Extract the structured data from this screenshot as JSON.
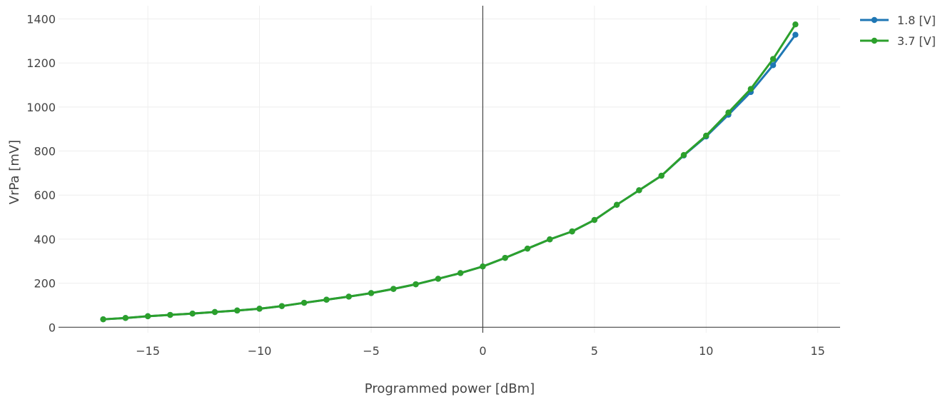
{
  "chart_data": {
    "type": "line",
    "title": "",
    "xlabel": "Programmed power [dBm]",
    "ylabel": "VrPa [mV]",
    "xlim": [
      -19,
      16
    ],
    "ylim": [
      -25,
      1460
    ],
    "xticks": [
      -15,
      -10,
      -5,
      0,
      5,
      10,
      15
    ],
    "xtick_labels": [
      "−15",
      "−10",
      "−5",
      "0",
      "5",
      "10",
      "15"
    ],
    "yticks": [
      0,
      200,
      400,
      600,
      800,
      1000,
      1200,
      1400
    ],
    "ytick_labels": [
      "0",
      "200",
      "400",
      "600",
      "800",
      "1000",
      "1200",
      "1400"
    ],
    "grid": true,
    "legend_position": "top-right",
    "x": [
      -17,
      -16,
      -15,
      -14,
      -13,
      -12,
      -11,
      -10,
      -9,
      -8,
      -7,
      -6,
      -5,
      -4,
      -3,
      -2,
      -1,
      0,
      1,
      2,
      3,
      4,
      5,
      6,
      7,
      8,
      9,
      10,
      11,
      12,
      13,
      14
    ],
    "series": [
      {
        "name": "1.8 [V]",
        "color": "#1f77b4",
        "values": [
          36,
          42,
          50,
          56,
          62,
          69,
          76,
          84,
          96,
          111,
          125,
          139,
          155,
          174,
          195,
          220,
          246,
          276,
          315,
          357,
          399,
          435,
          487,
          556,
          622,
          688,
          780,
          866,
          965,
          1068,
          1190,
          1328
        ]
      },
      {
        "name": "3.7 [V]",
        "color": "#2ca02c",
        "values": [
          36,
          42,
          50,
          56,
          62,
          69,
          76,
          84,
          96,
          111,
          125,
          139,
          155,
          174,
          195,
          220,
          246,
          276,
          315,
          357,
          399,
          435,
          487,
          556,
          622,
          688,
          782,
          870,
          975,
          1082,
          1218,
          1375
        ]
      }
    ]
  }
}
